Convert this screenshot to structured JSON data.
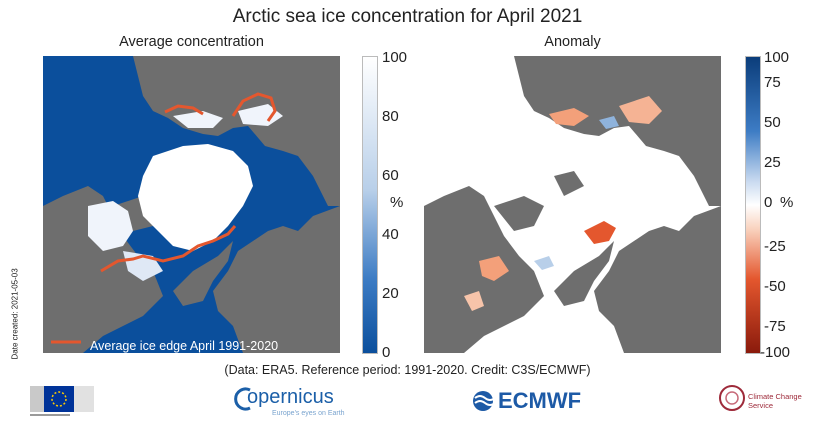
{
  "header": {
    "title": "Arctic sea ice concentration for April 2021",
    "left_subtitle": "Average concentration",
    "right_subtitle": "Anomaly"
  },
  "left_map": {
    "colorbar": {
      "ticks": [
        "100",
        "80",
        "60",
        "40",
        "20",
        "0"
      ],
      "unit": "%",
      "range": [
        0,
        100
      ]
    },
    "legend_label": "Average ice edge April 1991-2020",
    "colors": {
      "ocean": "#0b4f9c",
      "land": "#6e6e6e",
      "ice": "#ffffff",
      "ice_edge": "#e4572e"
    }
  },
  "right_map": {
    "colorbar": {
      "ticks": [
        "100",
        "75",
        "50",
        "25",
        "0",
        "-25",
        "-50",
        "-75",
        "-100"
      ],
      "unit": "%",
      "range": [
        -100,
        100
      ]
    },
    "colors": {
      "no_anomaly": "#ffffff",
      "land": "#6e6e6e",
      "negative": "#e4572e",
      "positive": "#2a6fba"
    }
  },
  "side_note": "Date created: 2021-05-03",
  "credit": "(Data: ERA5.  Reference period: 1991-2020.  Credit: C3S/ECMWF)",
  "logos": {
    "copernicus_name": "opernicus",
    "copernicus_tagline": "Europe's eyes on Earth",
    "ecmwf": "ECMWF",
    "c3s": "Climate Change Service"
  }
}
